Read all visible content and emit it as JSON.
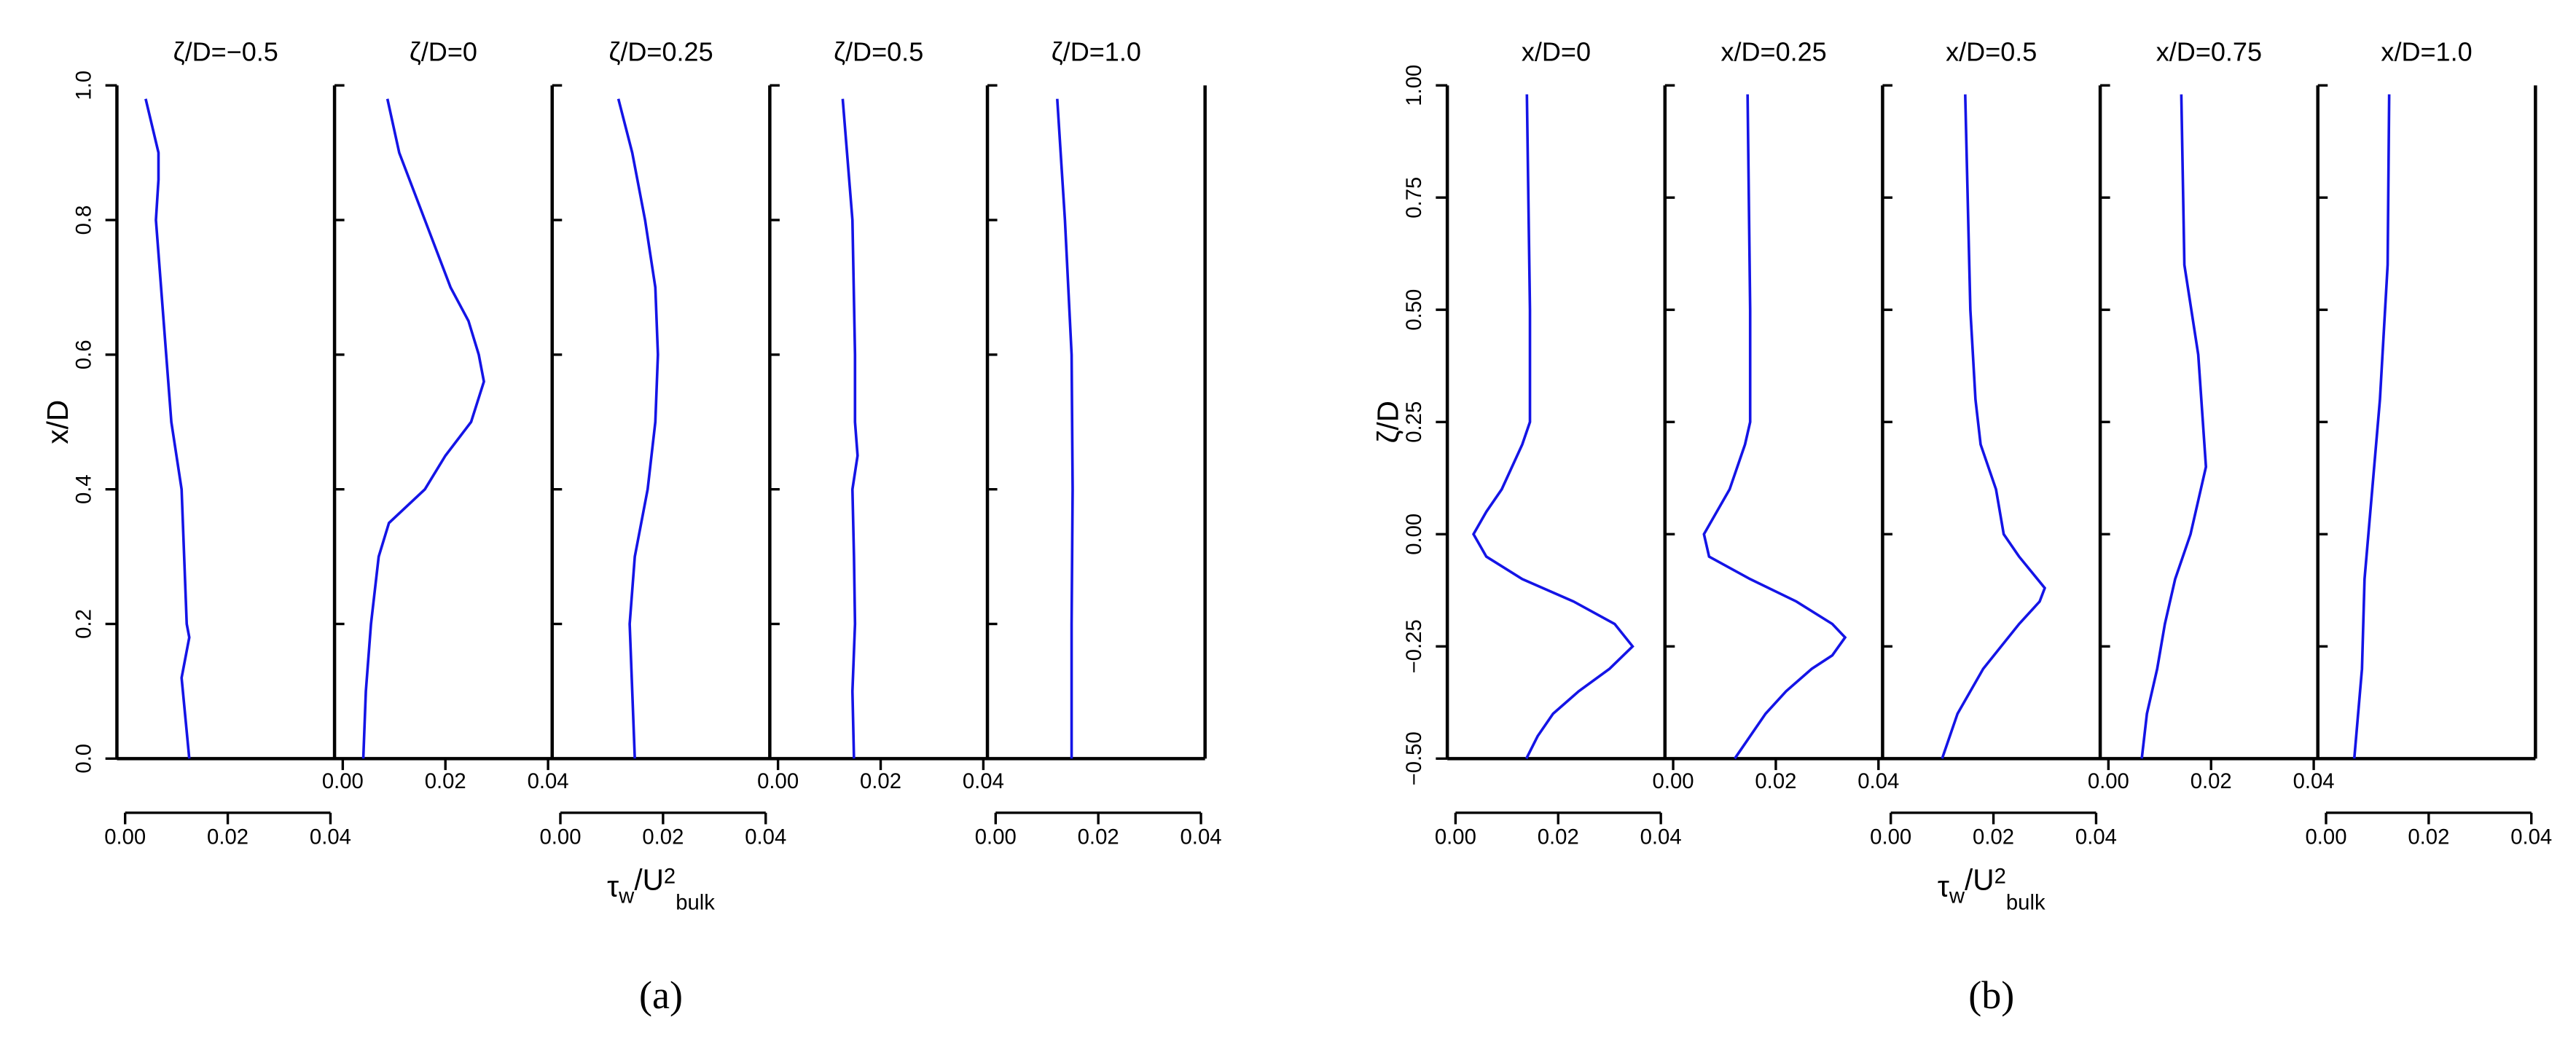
{
  "chart_data": [
    {
      "type": "line",
      "label": "(a)",
      "ylabel": "x/D",
      "xlabel": [
        "τ",
        "w",
        "/U",
        "2",
        "bulk"
      ],
      "color": "#1414e6",
      "ylim": [
        0,
        1
      ],
      "yticks": [
        {
          "value": 0,
          "label": "0.0"
        },
        0.2,
        0.4,
        0.6,
        0.8,
        {
          "value": 1,
          "label": "1.0"
        }
      ],
      "xlim": [
        0,
        0.04
      ],
      "xticks": [
        {
          "value": 0,
          "label": "0.00"
        },
        0.02,
        0.04
      ],
      "panels": [
        {
          "title": "ζ/D=−0.5",
          "positions": [
            0.98,
            0.9,
            0.86,
            0.8,
            0.7,
            0.6,
            0.5,
            0.4,
            0.3,
            0.2,
            0.18,
            0.12,
            0.08,
            0.0
          ],
          "values": [
            0.004,
            0.0065,
            0.0065,
            0.006,
            0.007,
            0.008,
            0.009,
            0.011,
            0.0115,
            0.012,
            0.0125,
            0.011,
            0.0115,
            0.0125
          ]
        },
        {
          "title": "ζ/D=0",
          "positions": [
            0.98,
            0.9,
            0.8,
            0.7,
            0.65,
            0.6,
            0.56,
            0.5,
            0.45,
            0.4,
            0.35,
            0.3,
            0.2,
            0.1,
            0.0
          ],
          "values": [
            0.0087,
            0.011,
            0.016,
            0.021,
            0.0245,
            0.0265,
            0.0275,
            0.025,
            0.02,
            0.016,
            0.009,
            0.007,
            0.0055,
            0.0045,
            0.004
          ]
        },
        {
          "title": "ζ/D=0.25",
          "positions": [
            0.98,
            0.9,
            0.8,
            0.7,
            0.6,
            0.5,
            0.4,
            0.3,
            0.2,
            0.1,
            0.0
          ],
          "values": [
            0.0113,
            0.014,
            0.0165,
            0.0185,
            0.019,
            0.0185,
            0.017,
            0.0145,
            0.0135,
            0.014,
            0.0145
          ]
        },
        {
          "title": "ζ/D=0.5",
          "positions": [
            0.98,
            0.8,
            0.6,
            0.5,
            0.45,
            0.4,
            0.3,
            0.2,
            0.1,
            0.0
          ],
          "values": [
            0.0126,
            0.0145,
            0.015,
            0.015,
            0.0155,
            0.0145,
            0.0148,
            0.015,
            0.0145,
            0.0148
          ]
        },
        {
          "title": "ζ/D=1.0",
          "positions": [
            0.98,
            0.8,
            0.6,
            0.4,
            0.2,
            0.0
          ],
          "values": [
            0.012,
            0.0135,
            0.0148,
            0.015,
            0.0148,
            0.0148
          ]
        }
      ]
    },
    {
      "type": "line",
      "label": "(b)",
      "ylabel": "ζ/D",
      "xlabel": [
        "τ",
        "w",
        "/U",
        "2",
        "bulk"
      ],
      "color": "#1414e6",
      "ylim": [
        -0.5,
        1
      ],
      "yticks": [
        {
          "value": -0.5,
          "label": "−0.50"
        },
        {
          "value": -0.25,
          "label": "−0.25"
        },
        {
          "value": 0,
          "label": "0.00"
        },
        0.25,
        {
          "value": 0.5,
          "label": "0.50"
        },
        0.75,
        {
          "value": 1,
          "label": "1.00"
        }
      ],
      "xlim": [
        0,
        0.04
      ],
      "xticks": [
        {
          "value": 0,
          "label": "0.00"
        },
        0.02,
        0.04
      ],
      "panels": [
        {
          "title": "x/D=0",
          "positions": [
            0.98,
            0.5,
            0.25,
            0.2,
            0.1,
            0.05,
            0.0,
            -0.05,
            -0.1,
            -0.15,
            -0.2,
            -0.25,
            -0.3,
            -0.35,
            -0.4,
            -0.45,
            -0.5
          ],
          "values": [
            0.0139,
            0.0145,
            0.0145,
            0.013,
            0.009,
            0.006,
            0.0035,
            0.006,
            0.013,
            0.023,
            0.031,
            0.0345,
            0.03,
            0.024,
            0.019,
            0.016,
            0.0138
          ]
        },
        {
          "title": "x/D=0.25",
          "positions": [
            0.98,
            0.5,
            0.25,
            0.2,
            0.1,
            0.0,
            -0.05,
            -0.1,
            -0.15,
            -0.2,
            -0.23,
            -0.27,
            -0.3,
            -0.35,
            -0.4,
            -0.5
          ],
          "values": [
            0.0145,
            0.015,
            0.015,
            0.014,
            0.011,
            0.006,
            0.007,
            0.015,
            0.024,
            0.031,
            0.0335,
            0.031,
            0.027,
            0.022,
            0.018,
            0.012
          ]
        },
        {
          "title": "x/D=0.5",
          "positions": [
            0.98,
            0.5,
            0.3,
            0.2,
            0.1,
            0.0,
            -0.05,
            -0.12,
            -0.15,
            -0.2,
            -0.3,
            -0.4,
            -0.5
          ],
          "values": [
            0.0145,
            0.0155,
            0.0165,
            0.0175,
            0.0205,
            0.022,
            0.025,
            0.03,
            0.029,
            0.025,
            0.018,
            0.013,
            0.01
          ]
        },
        {
          "title": "x/D=0.75",
          "positions": [
            0.98,
            0.6,
            0.4,
            0.15,
            0.0,
            -0.1,
            -0.2,
            -0.3,
            -0.4,
            -0.5
          ],
          "values": [
            0.0142,
            0.0148,
            0.0175,
            0.019,
            0.016,
            0.013,
            0.011,
            0.0095,
            0.0075,
            0.0065
          ]
        },
        {
          "title": "x/D=1.0",
          "positions": [
            0.98,
            0.6,
            0.3,
            0.1,
            -0.1,
            -0.3,
            -0.5
          ],
          "values": [
            0.0123,
            0.012,
            0.0105,
            0.009,
            0.0075,
            0.007,
            0.0055
          ]
        }
      ]
    }
  ]
}
